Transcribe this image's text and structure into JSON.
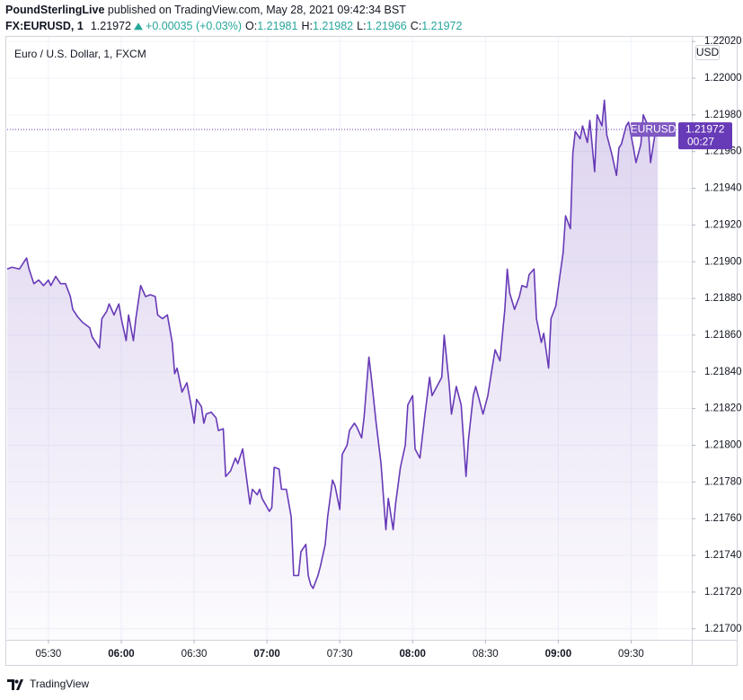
{
  "header": {
    "author": "PoundSterlingLive",
    "note": "published on TradingView.com, May 28, 2021 09:42:34 BST",
    "symbol": "FX:EURUSD, 1",
    "price": "1.21972",
    "change": "+0.00035 (+0.03%)",
    "ohlc": [
      {
        "label": "O:",
        "value": "1.21981"
      },
      {
        "label": "H:",
        "value": "1.21982"
      },
      {
        "label": "L:",
        "value": "1.21966"
      },
      {
        "label": "C:",
        "value": "1.21972"
      }
    ]
  },
  "footer": {
    "brand": "TradingView"
  },
  "chart_data": {
    "type": "line",
    "title": "Euro / U.S. Dollar, 1, FXCM",
    "currency": "USD",
    "x": [
      313,
      315,
      318,
      321,
      322,
      324,
      326,
      328,
      330,
      331,
      333,
      335,
      337,
      339,
      340,
      342,
      344,
      347,
      348,
      351,
      352,
      354,
      355,
      357,
      359,
      360,
      362,
      363,
      365,
      366,
      368,
      370,
      372,
      374,
      375,
      377,
      379,
      381,
      382,
      383,
      385,
      387,
      389,
      390,
      391,
      393,
      394,
      395,
      397,
      399,
      400,
      402,
      403,
      405,
      407,
      408,
      410,
      411,
      413,
      414,
      416,
      417,
      418,
      421,
      422,
      423,
      425,
      426,
      428,
      430,
      431,
      433,
      434,
      436,
      437,
      438,
      439,
      441,
      442,
      444,
      445,
      447,
      448,
      450,
      451,
      453,
      454,
      456,
      457,
      459,
      460,
      462,
      463,
      465,
      467,
      469,
      470,
      472,
      473,
      475,
      477,
      478,
      480,
      481,
      483,
      485,
      487,
      488,
      490,
      492,
      493,
      495,
      496,
      498,
      500,
      502,
      503,
      505,
      506,
      507,
      509,
      511,
      513,
      514,
      516,
      518,
      519,
      520,
      522,
      524,
      525,
      527,
      528,
      530,
      531,
      533,
      534,
      536,
      537,
      539,
      540,
      542,
      543,
      545,
      546,
      547,
      549,
      550,
      552,
      553,
      555,
      556,
      558,
      559,
      560,
      562,
      564,
      565,
      566,
      568,
      569,
      571,
      572,
      574,
      575,
      577,
      578,
      580,
      581
    ],
    "series": [
      {
        "name": "EURUSD",
        "color": "#673ab7",
        "values": [
          1.21896,
          1.21897,
          1.21896,
          1.21902,
          1.21896,
          1.21888,
          1.2189,
          1.21887,
          1.2189,
          1.21887,
          1.21892,
          1.21888,
          1.21888,
          1.21881,
          1.21874,
          1.2187,
          1.21867,
          1.21864,
          1.21859,
          1.21853,
          1.21869,
          1.21873,
          1.21877,
          1.21871,
          1.21877,
          1.21869,
          1.21857,
          1.21871,
          1.21857,
          1.21869,
          1.21887,
          1.21881,
          1.21882,
          1.21881,
          1.21871,
          1.21869,
          1.21871,
          1.21856,
          1.21839,
          1.21842,
          1.21829,
          1.21834,
          1.2182,
          1.21812,
          1.21825,
          1.21821,
          1.21812,
          1.21817,
          1.21818,
          1.21815,
          1.21808,
          1.21809,
          1.21783,
          1.21786,
          1.21793,
          1.2179,
          1.21798,
          1.21788,
          1.21768,
          1.21776,
          1.21773,
          1.21776,
          1.21771,
          1.21764,
          1.21766,
          1.21788,
          1.21787,
          1.21776,
          1.21776,
          1.21761,
          1.21729,
          1.21729,
          1.21742,
          1.21746,
          1.21729,
          1.21724,
          1.21722,
          1.21729,
          1.21734,
          1.21746,
          1.21761,
          1.21781,
          1.21778,
          1.21765,
          1.21795,
          1.218,
          1.21808,
          1.21812,
          1.2181,
          1.21804,
          1.21815,
          1.21848,
          1.21837,
          1.21812,
          1.2179,
          1.21754,
          1.21771,
          1.21754,
          1.21768,
          1.21788,
          1.218,
          1.21822,
          1.21827,
          1.21798,
          1.21793,
          1.21816,
          1.21837,
          1.21827,
          1.21832,
          1.21837,
          1.2186,
          1.21834,
          1.21817,
          1.21832,
          1.21822,
          1.21783,
          1.21803,
          1.21827,
          1.21832,
          1.21827,
          1.21817,
          1.21827,
          1.21844,
          1.21852,
          1.21846,
          1.21874,
          1.21896,
          1.21883,
          1.21874,
          1.21881,
          1.21887,
          1.21886,
          1.21893,
          1.21896,
          1.21869,
          1.21856,
          1.21861,
          1.21842,
          1.21869,
          1.21876,
          1.21886,
          1.21905,
          1.21925,
          1.21918,
          1.21959,
          1.21971,
          1.21967,
          1.21974,
          1.21965,
          1.21977,
          1.21949,
          1.2198,
          1.21974,
          1.21988,
          1.21969,
          1.21959,
          1.21947,
          1.21962,
          1.21964,
          1.21974,
          1.21976,
          1.21962,
          1.21954,
          1.21964,
          1.2198,
          1.21974,
          1.21954,
          1.21971,
          1.21972
        ]
      }
    ],
    "last_price": 1.21972,
    "countdown": "00:27",
    "xlim": [
      313,
      595
    ],
    "xticks": [
      {
        "value": 330,
        "label": "05:30"
      },
      {
        "value": 360,
        "label": "06:00"
      },
      {
        "value": 390,
        "label": "06:30"
      },
      {
        "value": 420,
        "label": "07:00"
      },
      {
        "value": 450,
        "label": "07:30"
      },
      {
        "value": 480,
        "label": "08:00"
      },
      {
        "value": 510,
        "label": "08:30"
      },
      {
        "value": 540,
        "label": "09:00"
      },
      {
        "value": 570,
        "label": "09:30"
      }
    ],
    "ylim": [
      1.21694,
      1.22023
    ],
    "yticks": [
      {
        "value": 1.217,
        "label": "1.21700"
      },
      {
        "value": 1.2172,
        "label": "1.21720"
      },
      {
        "value": 1.2174,
        "label": "1.21740"
      },
      {
        "value": 1.2176,
        "label": "1.21760"
      },
      {
        "value": 1.2178,
        "label": "1.21780"
      },
      {
        "value": 1.218,
        "label": "1.21800"
      },
      {
        "value": 1.2182,
        "label": "1.21820"
      },
      {
        "value": 1.2184,
        "label": "1.21840"
      },
      {
        "value": 1.2186,
        "label": "1.21860"
      },
      {
        "value": 1.2188,
        "label": "1.21880"
      },
      {
        "value": 1.219,
        "label": "1.21900"
      },
      {
        "value": 1.2192,
        "label": "1.21920"
      },
      {
        "value": 1.2194,
        "label": "1.21940"
      },
      {
        "value": 1.2196,
        "label": "1.21960"
      },
      {
        "value": 1.2198,
        "label": "1.21980"
      },
      {
        "value": 1.22,
        "label": "1.22000"
      },
      {
        "value": 1.2202,
        "label": "1.22020"
      }
    ],
    "grid": true
  }
}
